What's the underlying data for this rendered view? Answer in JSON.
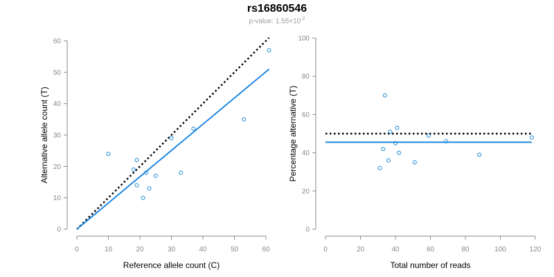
{
  "title": "rs16860546",
  "subtitle_prefix": "p-value: 1.55×10",
  "subtitle_exponent": "-2",
  "colors": {
    "points": "#1a8ad4",
    "fit_line": "#1e88e5",
    "reference_line": "#000000",
    "axis": "#888888"
  },
  "chart_data": [
    {
      "type": "scatter",
      "xlabel": "Reference allele count (C)",
      "ylabel": "Alternative allele count (T)",
      "xlim": [
        0,
        60
      ],
      "ylim": [
        0,
        60
      ],
      "xticks": [
        "0",
        "10",
        "20",
        "30",
        "40",
        "50",
        "60"
      ],
      "yticks": [
        "0",
        "10",
        "20",
        "30",
        "40",
        "50",
        "60"
      ],
      "grid": false,
      "points": [
        {
          "x": 10,
          "y": 24
        },
        {
          "x": 18,
          "y": 19
        },
        {
          "x": 19,
          "y": 22
        },
        {
          "x": 19,
          "y": 14
        },
        {
          "x": 21,
          "y": 10
        },
        {
          "x": 22,
          "y": 18
        },
        {
          "x": 23,
          "y": 13
        },
        {
          "x": 25,
          "y": 17
        },
        {
          "x": 30,
          "y": 29
        },
        {
          "x": 33,
          "y": 18
        },
        {
          "x": 37,
          "y": 32
        },
        {
          "x": 53,
          "y": 35
        },
        {
          "x": 61,
          "y": 57
        }
      ],
      "fit_line": {
        "x": [
          0,
          61
        ],
        "y": [
          0,
          51
        ]
      },
      "reference_line": {
        "x": [
          0,
          61
        ],
        "y": [
          0,
          61
        ]
      }
    },
    {
      "type": "scatter",
      "xlabel": "Total number of reads",
      "ylabel": "Percentage alternative (T)",
      "xlim": [
        0,
        120
      ],
      "ylim": [
        0,
        100
      ],
      "xticks": [
        "0",
        "20",
        "40",
        "60",
        "80",
        "100",
        "120"
      ],
      "yticks": [
        "0",
        "20",
        "40",
        "60",
        "80",
        "100"
      ],
      "grid": false,
      "points": [
        {
          "x": 31,
          "y": 32
        },
        {
          "x": 33,
          "y": 42
        },
        {
          "x": 34,
          "y": 70
        },
        {
          "x": 36,
          "y": 36
        },
        {
          "x": 37,
          "y": 51
        },
        {
          "x": 40,
          "y": 45
        },
        {
          "x": 41,
          "y": 53
        },
        {
          "x": 42,
          "y": 40
        },
        {
          "x": 51,
          "y": 35
        },
        {
          "x": 59,
          "y": 49
        },
        {
          "x": 69,
          "y": 46
        },
        {
          "x": 88,
          "y": 39
        },
        {
          "x": 118,
          "y": 48
        }
      ],
      "fit_line": {
        "x": [
          0,
          118
        ],
        "y": [
          45.5,
          45.5
        ]
      },
      "reference_line": {
        "x": [
          0,
          118
        ],
        "y": [
          50,
          50
        ]
      }
    }
  ]
}
